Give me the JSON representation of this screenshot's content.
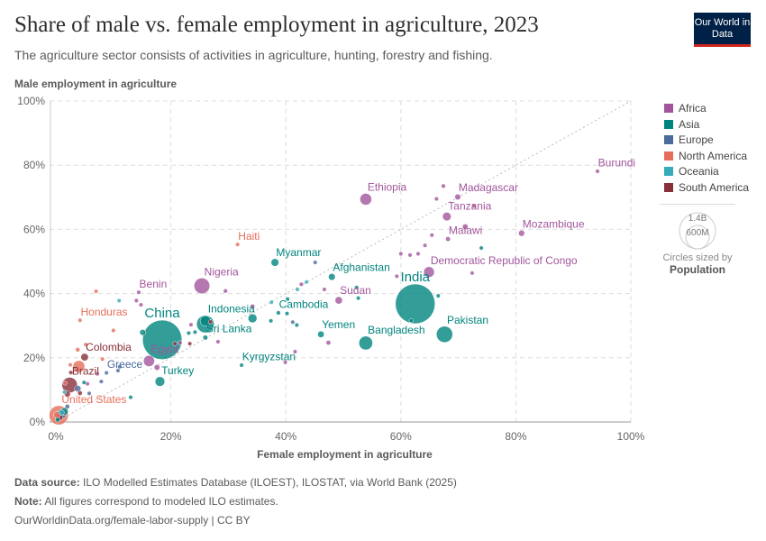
{
  "header": {
    "title": "Share of male vs. female employment in agriculture, 2023",
    "subtitle": "The agriculture sector consists of activities in agriculture, hunting, forestry and fishing.",
    "logo": "Our World in Data"
  },
  "footer": {
    "source_label": "Data source:",
    "source": "ILO Modelled Estimates Database (ILOEST), ILOSTAT, via World Bank (2025)",
    "note_label": "Note:",
    "note": "All figures correspond to modeled ILO estimates.",
    "url": "OurWorldinData.org/female-labor-supply | CC BY"
  },
  "size_legend": {
    "values": [
      "1.4B",
      "600M"
    ],
    "caption": "Circles sized by",
    "variable": "Population"
  },
  "chart_data": {
    "type": "scatter",
    "xlabel": "Female employment in agriculture",
    "ylabel": "Male employment in agriculture",
    "xlim": [
      0,
      100
    ],
    "ylim": [
      0,
      100
    ],
    "xticks": [
      "0%",
      "20%",
      "40%",
      "60%",
      "80%",
      "100%"
    ],
    "yticks": [
      "0%",
      "20%",
      "40%",
      "60%",
      "80%",
      "100%"
    ],
    "grid": true,
    "diagonal_reference": true,
    "legend_placement": "right",
    "legend": [
      {
        "name": "Africa",
        "color": "#a2559c"
      },
      {
        "name": "Asia",
        "color": "#00847e"
      },
      {
        "name": "Europe",
        "color": "#4c6a9c"
      },
      {
        "name": "North America",
        "color": "#e56e5a"
      },
      {
        "name": "Oceania",
        "color": "#38aaba"
      },
      {
        "name": "South America",
        "color": "#883039"
      }
    ],
    "points": [
      {
        "label": "Burundi",
        "region": "Africa",
        "x": 94.2,
        "y": 78.1,
        "pop": 13
      },
      {
        "label": "Ethiopia",
        "region": "Africa",
        "x": 53.9,
        "y": 69.4,
        "pop": 126
      },
      {
        "label": "Madagascar",
        "region": "Africa",
        "x": 69.9,
        "y": 70.1,
        "pop": 31
      },
      {
        "label": "Tanzania",
        "region": "Africa",
        "x": 68.0,
        "y": 64.0,
        "pop": 67
      },
      {
        "label": "Malawi",
        "region": "Africa",
        "x": 68.2,
        "y": 57.0,
        "pop": 21
      },
      {
        "label": "Mozambique",
        "region": "Africa",
        "x": 81.0,
        "y": 58.8,
        "pop": 34
      },
      {
        "label": "Democratic Republic of Congo",
        "region": "Africa",
        "x": 64.9,
        "y": 46.7,
        "pop": 105
      },
      {
        "label": "India",
        "region": "Asia",
        "x": 62.5,
        "y": 36.8,
        "pop": 1430
      },
      {
        "label": "Pakistan",
        "region": "Asia",
        "x": 67.6,
        "y": 27.3,
        "pop": 240
      },
      {
        "label": "Bangladesh",
        "region": "Asia",
        "x": 53.9,
        "y": 24.6,
        "pop": 173
      },
      {
        "label": "Yemen",
        "region": "Asia",
        "x": 46.1,
        "y": 27.3,
        "pop": 39
      },
      {
        "label": "Sudan",
        "region": "Africa",
        "x": 49.2,
        "y": 37.9,
        "pop": 50
      },
      {
        "label": "Cambodia",
        "region": "Asia",
        "x": 38.7,
        "y": 34.0,
        "pop": 17
      },
      {
        "label": "Afghanistan",
        "region": "Asia",
        "x": 48.0,
        "y": 45.2,
        "pop": 42
      },
      {
        "label": "Myanmar",
        "region": "Asia",
        "x": 38.1,
        "y": 49.7,
        "pop": 54
      },
      {
        "label": "Kyrgyzstan",
        "region": "Asia",
        "x": 32.3,
        "y": 17.7,
        "pop": 7
      },
      {
        "label": "Haiti",
        "region": "North America",
        "x": 31.6,
        "y": 55.3,
        "pop": 11
      },
      {
        "label": "Nigeria",
        "region": "Africa",
        "x": 25.4,
        "y": 42.4,
        "pop": 224
      },
      {
        "label": "Benin",
        "region": "Africa",
        "x": 14.4,
        "y": 40.4,
        "pop": 13
      },
      {
        "label": "China",
        "region": "Asia",
        "x": 18.5,
        "y": 25.6,
        "pop": 1410
      },
      {
        "label": "Indonesia",
        "region": "Asia",
        "x": 26.0,
        "y": 30.5,
        "pop": 278
      },
      {
        "label": "Sri Lanka",
        "region": "Asia",
        "x": 26.0,
        "y": 26.3,
        "pop": 22
      },
      {
        "label": "Egypt",
        "region": "Africa",
        "x": 16.2,
        "y": 19.0,
        "pop": 113
      },
      {
        "label": "Turkey",
        "region": "Asia",
        "x": 18.1,
        "y": 12.6,
        "pop": 85
      },
      {
        "label": "Honduras",
        "region": "North America",
        "x": 4.2,
        "y": 31.7,
        "pop": 10
      },
      {
        "label": "Colombia",
        "region": "South America",
        "x": 5.0,
        "y": 20.2,
        "pop": 52
      },
      {
        "label": "Brazil",
        "region": "South America",
        "x": 2.4,
        "y": 11.5,
        "pop": 216
      },
      {
        "label": "Greece",
        "region": "Europe",
        "x": 8.8,
        "y": 15.3,
        "pop": 10
      },
      {
        "label": "United States",
        "region": "North America",
        "x": 0.5,
        "y": 2.1,
        "pop": 335
      },
      {
        "region": "Africa",
        "x": 67.4,
        "y": 73.5,
        "pop": 17
      },
      {
        "region": "Africa",
        "x": 66.2,
        "y": 69.5,
        "pop": 14
      },
      {
        "region": "Africa",
        "x": 71.2,
        "y": 60.8,
        "pop": 30
      },
      {
        "region": "Africa",
        "x": 72.7,
        "y": 67.3,
        "pop": 6
      },
      {
        "region": "Africa",
        "x": 60.0,
        "y": 52.4,
        "pop": 9
      },
      {
        "region": "Africa",
        "x": 61.6,
        "y": 52.0,
        "pop": 16
      },
      {
        "region": "Africa",
        "x": 63.0,
        "y": 52.4,
        "pop": 8
      },
      {
        "region": "Africa",
        "x": 64.2,
        "y": 55.0,
        "pop": 7
      },
      {
        "region": "Africa",
        "x": 65.4,
        "y": 58.2,
        "pop": 8
      },
      {
        "region": "Africa",
        "x": 72.4,
        "y": 46.4,
        "pop": 5
      },
      {
        "region": "Africa",
        "x": 59.3,
        "y": 45.4,
        "pop": 6
      },
      {
        "region": "Africa",
        "x": 46.7,
        "y": 41.3,
        "pop": 12
      },
      {
        "region": "Africa",
        "x": 42.7,
        "y": 42.9,
        "pop": 6
      },
      {
        "region": "Africa",
        "x": 34.2,
        "y": 36.0,
        "pop": 20
      },
      {
        "region": "Africa",
        "x": 29.5,
        "y": 40.8,
        "pop": 17
      },
      {
        "region": "Africa",
        "x": 14.8,
        "y": 36.5,
        "pop": 9
      },
      {
        "region": "Africa",
        "x": 14.0,
        "y": 37.8,
        "pop": 7
      },
      {
        "region": "Africa",
        "x": 23.5,
        "y": 30.3,
        "pop": 8
      },
      {
        "region": "Africa",
        "x": 21.6,
        "y": 24.7,
        "pop": 6
      },
      {
        "region": "Africa",
        "x": 28.2,
        "y": 25.0,
        "pop": 6
      },
      {
        "region": "Africa",
        "x": 17.6,
        "y": 17.0,
        "pop": 30
      },
      {
        "region": "Africa",
        "x": 47.4,
        "y": 24.7,
        "pop": 20
      },
      {
        "region": "Africa",
        "x": 39.9,
        "y": 18.6,
        "pop": 5
      },
      {
        "region": "Africa",
        "x": 41.6,
        "y": 21.9,
        "pop": 5
      },
      {
        "region": "Africa",
        "x": 7.2,
        "y": 15.0,
        "pop": 8
      },
      {
        "region": "Africa",
        "x": 5.5,
        "y": 11.9,
        "pop": 6
      },
      {
        "region": "Asia",
        "x": 74.0,
        "y": 54.2,
        "pop": 7
      },
      {
        "region": "Asia",
        "x": 66.5,
        "y": 39.3,
        "pop": 5
      },
      {
        "region": "Asia",
        "x": 61.8,
        "y": 31.6,
        "pop": 4
      },
      {
        "region": "Asia",
        "x": 52.3,
        "y": 41.9,
        "pop": 5
      },
      {
        "region": "Asia",
        "x": 52.6,
        "y": 38.6,
        "pop": 5
      },
      {
        "region": "Asia",
        "x": 40.3,
        "y": 38.3,
        "pop": 4
      },
      {
        "region": "Asia",
        "x": 40.2,
        "y": 33.8,
        "pop": 5
      },
      {
        "region": "Asia",
        "x": 37.4,
        "y": 31.5,
        "pop": 4
      },
      {
        "region": "Asia",
        "x": 41.9,
        "y": 30.2,
        "pop": 5
      },
      {
        "region": "Asia",
        "x": 34.2,
        "y": 32.3,
        "pop": 72
      },
      {
        "region": "Asia",
        "x": 26.0,
        "y": 31.5,
        "pop": 100
      },
      {
        "region": "Asia",
        "x": 15.1,
        "y": 27.9,
        "pop": 33
      },
      {
        "region": "Asia",
        "x": 24.2,
        "y": 28.0,
        "pop": 6
      },
      {
        "region": "Asia",
        "x": 23.1,
        "y": 27.7,
        "pop": 6
      },
      {
        "region": "Asia",
        "x": 13.0,
        "y": 7.7,
        "pop": 9
      },
      {
        "region": "Asia",
        "x": 4.9,
        "y": 12.3,
        "pop": 6
      },
      {
        "region": "Asia",
        "x": 1.5,
        "y": 3.3,
        "pop": 50
      },
      {
        "region": "Asia",
        "x": 0.3,
        "y": 0.7,
        "pop": 20
      },
      {
        "region": "Europe",
        "x": 41.2,
        "y": 31.1,
        "pop": 3
      },
      {
        "region": "Europe",
        "x": 45.1,
        "y": 49.7,
        "pop": 3
      },
      {
        "region": "Europe",
        "x": 10.8,
        "y": 16.0,
        "pop": 10
      },
      {
        "region": "Europe",
        "x": 11.1,
        "y": 17.2,
        "pop": 5
      },
      {
        "region": "Europe",
        "x": 5.8,
        "y": 8.9,
        "pop": 6
      },
      {
        "region": "Europe",
        "x": 3.8,
        "y": 10.4,
        "pop": 38
      },
      {
        "region": "Europe",
        "x": 2.0,
        "y": 4.8,
        "pop": 20
      },
      {
        "region": "Europe",
        "x": 1.0,
        "y": 2.5,
        "pop": 83
      },
      {
        "region": "Europe",
        "x": 7.9,
        "y": 12.6,
        "pop": 5
      },
      {
        "region": "North America",
        "x": 7.0,
        "y": 40.7,
        "pop": 4
      },
      {
        "region": "North America",
        "x": 10.0,
        "y": 28.5,
        "pop": 6
      },
      {
        "region": "North America",
        "x": 5.2,
        "y": 24.1,
        "pop": 8
      },
      {
        "region": "North America",
        "x": 3.8,
        "y": 22.5,
        "pop": 18
      },
      {
        "region": "North America",
        "x": 2.5,
        "y": 17.8,
        "pop": 6
      },
      {
        "region": "North America",
        "x": 4.0,
        "y": 17.3,
        "pop": 128
      },
      {
        "region": "North America",
        "x": 1.6,
        "y": 12.1,
        "pop": 11
      },
      {
        "region": "North America",
        "x": 0.2,
        "y": 2.2,
        "pop": 40
      },
      {
        "region": "North America",
        "x": 8.1,
        "y": 19.6,
        "pop": 5
      },
      {
        "region": "Oceania",
        "x": 11.0,
        "y": 37.8,
        "pop": 4
      },
      {
        "region": "Oceania",
        "x": 43.6,
        "y": 43.6,
        "pop": 3
      },
      {
        "region": "Oceania",
        "x": 42.0,
        "y": 41.3,
        "pop": 10
      },
      {
        "region": "Oceania",
        "x": 37.5,
        "y": 37.3,
        "pop": 3
      },
      {
        "region": "Oceania",
        "x": 1.0,
        "y": 2.9,
        "pop": 27
      },
      {
        "region": "Oceania",
        "x": 1.5,
        "y": 9.3,
        "pop": 4
      },
      {
        "region": "South America",
        "x": 26.9,
        "y": 31.2,
        "pop": 6
      },
      {
        "region": "South America",
        "x": 23.3,
        "y": 24.4,
        "pop": 12
      },
      {
        "region": "South America",
        "x": 20.7,
        "y": 24.4,
        "pop": 7
      },
      {
        "region": "South America",
        "x": 2.0,
        "y": 8.7,
        "pop": 34
      },
      {
        "region": "South America",
        "x": 4.2,
        "y": 9.0,
        "pop": 20
      },
      {
        "region": "South America",
        "x": 0.6,
        "y": 1.5,
        "pop": 46
      },
      {
        "region": "South America",
        "x": 2.6,
        "y": 15.4,
        "pop": 7
      }
    ]
  }
}
